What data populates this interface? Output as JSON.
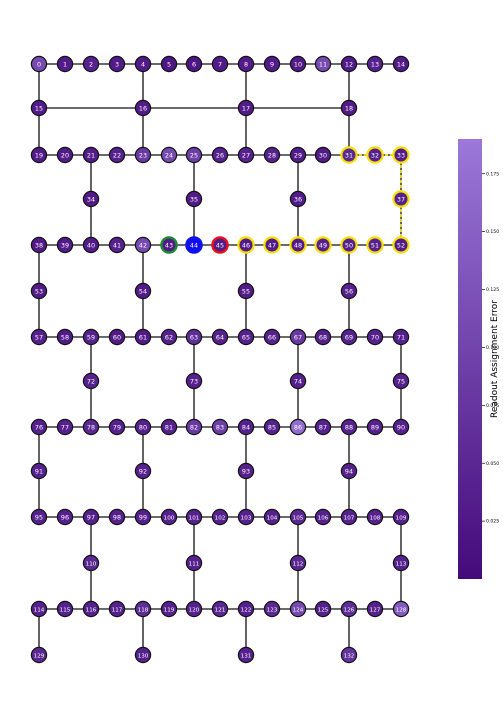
{
  "colorbar": {
    "label": "Readout Assignment Error",
    "ticks": [
      "0.025",
      "0.050",
      "0.075",
      "0.100",
      "0.125",
      "0.150",
      "0.175"
    ],
    "tick_values": [
      0.025,
      0.05,
      0.075,
      0.1,
      0.125,
      0.15,
      0.175
    ],
    "min": 0.0,
    "max": 0.19,
    "color_low": "#440a7a",
    "color_high": "#9b78d9"
  },
  "colors": {
    "edge": "#111111",
    "node_border": "#111111",
    "node_text": "#ffffff",
    "highlight_path": "#f5e000",
    "highlight_start": "#1c8a2e",
    "highlight_mid": "#1010ee",
    "highlight_end": "#e8101a"
  },
  "qubits": [
    {
      "id": "0",
      "err": 0.11
    },
    {
      "id": "1",
      "err": 0.03
    },
    {
      "id": "2",
      "err": 0.04
    },
    {
      "id": "3",
      "err": 0.03
    },
    {
      "id": "4",
      "err": 0.03
    },
    {
      "id": "5",
      "err": 0.02
    },
    {
      "id": "6",
      "err": 0.02
    },
    {
      "id": "7",
      "err": 0.03
    },
    {
      "id": "8",
      "err": 0.03
    },
    {
      "id": "9",
      "err": 0.03
    },
    {
      "id": "10",
      "err": 0.03
    },
    {
      "id": "11",
      "err": 0.11
    },
    {
      "id": "12",
      "err": 0.03
    },
    {
      "id": "13",
      "err": 0.04
    },
    {
      "id": "14",
      "err": 0.03
    },
    {
      "id": "15",
      "err": 0.03
    },
    {
      "id": "16",
      "err": 0.03
    },
    {
      "id": "17",
      "err": 0.03
    },
    {
      "id": "18",
      "err": 0.03
    },
    {
      "id": "19",
      "err": 0.03
    },
    {
      "id": "20",
      "err": 0.03
    },
    {
      "id": "21",
      "err": 0.03
    },
    {
      "id": "22",
      "err": 0.04
    },
    {
      "id": "23",
      "err": 0.08
    },
    {
      "id": "24",
      "err": 0.11
    },
    {
      "id": "25",
      "err": 0.09
    },
    {
      "id": "26",
      "err": 0.04
    },
    {
      "id": "27",
      "err": 0.04
    },
    {
      "id": "28",
      "err": 0.04
    },
    {
      "id": "29",
      "err": 0.03
    },
    {
      "id": "30",
      "err": 0.03
    },
    {
      "id": "31",
      "err": 0.05
    },
    {
      "id": "32",
      "err": 0.04
    },
    {
      "id": "33",
      "err": 0.03
    },
    {
      "id": "34",
      "err": 0.03
    },
    {
      "id": "35",
      "err": 0.03
    },
    {
      "id": "36",
      "err": 0.03
    },
    {
      "id": "37",
      "err": 0.04
    },
    {
      "id": "38",
      "err": 0.03
    },
    {
      "id": "39",
      "err": 0.03
    },
    {
      "id": "40",
      "err": 0.03
    },
    {
      "id": "41",
      "err": 0.04
    },
    {
      "id": "42",
      "err": 0.11
    },
    {
      "id": "43",
      "err": 0.03
    },
    {
      "id": "44",
      "err": 0.03
    },
    {
      "id": "45",
      "err": 0.03
    },
    {
      "id": "46",
      "err": 0.03
    },
    {
      "id": "47",
      "err": 0.03
    },
    {
      "id": "48",
      "err": 0.03
    },
    {
      "id": "49",
      "err": 0.04
    },
    {
      "id": "50",
      "err": 0.04
    },
    {
      "id": "51",
      "err": 0.04
    },
    {
      "id": "52",
      "err": 0.03
    },
    {
      "id": "53",
      "err": 0.03
    },
    {
      "id": "54",
      "err": 0.03
    },
    {
      "id": "55",
      "err": 0.03
    },
    {
      "id": "56",
      "err": 0.04
    },
    {
      "id": "57",
      "err": 0.04
    },
    {
      "id": "58",
      "err": 0.03
    },
    {
      "id": "59",
      "err": 0.04
    },
    {
      "id": "60",
      "err": 0.03
    },
    {
      "id": "61",
      "err": 0.03
    },
    {
      "id": "62",
      "err": 0.04
    },
    {
      "id": "63",
      "err": 0.06
    },
    {
      "id": "64",
      "err": 0.04
    },
    {
      "id": "65",
      "err": 0.04
    },
    {
      "id": "66",
      "err": 0.04
    },
    {
      "id": "67",
      "err": 0.08
    },
    {
      "id": "68",
      "err": 0.04
    },
    {
      "id": "69",
      "err": 0.04
    },
    {
      "id": "70",
      "err": 0.04
    },
    {
      "id": "71",
      "err": 0.04
    },
    {
      "id": "72",
      "err": 0.04
    },
    {
      "id": "73",
      "err": 0.04
    },
    {
      "id": "74",
      "err": 0.04
    },
    {
      "id": "75",
      "err": 0.04
    },
    {
      "id": "76",
      "err": 0.04
    },
    {
      "id": "77",
      "err": 0.04
    },
    {
      "id": "78",
      "err": 0.05
    },
    {
      "id": "79",
      "err": 0.04
    },
    {
      "id": "80",
      "err": 0.04
    },
    {
      "id": "81",
      "err": 0.04
    },
    {
      "id": "82",
      "err": 0.08
    },
    {
      "id": "83",
      "err": 0.09
    },
    {
      "id": "84",
      "err": 0.04
    },
    {
      "id": "85",
      "err": 0.04
    },
    {
      "id": "86",
      "err": 0.17
    },
    {
      "id": "87",
      "err": 0.04
    },
    {
      "id": "88",
      "err": 0.04
    },
    {
      "id": "89",
      "err": 0.04
    },
    {
      "id": "90",
      "err": 0.04
    },
    {
      "id": "91",
      "err": 0.04
    },
    {
      "id": "92",
      "err": 0.04
    },
    {
      "id": "93",
      "err": 0.04
    },
    {
      "id": "94",
      "err": 0.04
    },
    {
      "id": "95",
      "err": 0.04
    },
    {
      "id": "96",
      "err": 0.04
    },
    {
      "id": "97",
      "err": 0.04
    },
    {
      "id": "98",
      "err": 0.04
    },
    {
      "id": "99",
      "err": 0.04
    },
    {
      "id": "100",
      "err": 0.04
    },
    {
      "id": "101",
      "err": 0.04
    },
    {
      "id": "102",
      "err": 0.04
    },
    {
      "id": "103",
      "err": 0.04
    },
    {
      "id": "104",
      "err": 0.04
    },
    {
      "id": "105",
      "err": 0.05
    },
    {
      "id": "106",
      "err": 0.04
    },
    {
      "id": "107",
      "err": 0.04
    },
    {
      "id": "108",
      "err": 0.04
    },
    {
      "id": "109",
      "err": 0.04
    },
    {
      "id": "110",
      "err": 0.05
    },
    {
      "id": "111",
      "err": 0.04
    },
    {
      "id": "112",
      "err": 0.05
    },
    {
      "id": "113",
      "err": 0.04
    },
    {
      "id": "114",
      "err": 0.04
    },
    {
      "id": "115",
      "err": 0.04
    },
    {
      "id": "116",
      "err": 0.04
    },
    {
      "id": "117",
      "err": 0.04
    },
    {
      "id": "118",
      "err": 0.06
    },
    {
      "id": "119",
      "err": 0.04
    },
    {
      "id": "120",
      "err": 0.04
    },
    {
      "id": "121",
      "err": 0.05
    },
    {
      "id": "122",
      "err": 0.04
    },
    {
      "id": "123",
      "err": 0.05
    },
    {
      "id": "124",
      "err": 0.11
    },
    {
      "id": "125",
      "err": 0.04
    },
    {
      "id": "126",
      "err": 0.06
    },
    {
      "id": "127",
      "err": 0.04
    },
    {
      "id": "128",
      "err": 0.14
    },
    {
      "id": "129",
      "err": 0.05
    },
    {
      "id": "130",
      "err": 0.04
    },
    {
      "id": "131",
      "err": 0.04
    },
    {
      "id": "132",
      "err": 0.07
    }
  ],
  "highlight": {
    "path": [
      "46",
      "47",
      "48",
      "49",
      "50",
      "51",
      "52",
      "37",
      "33",
      "32",
      "31"
    ],
    "start": "43",
    "mid": "44",
    "end": "45"
  }
}
